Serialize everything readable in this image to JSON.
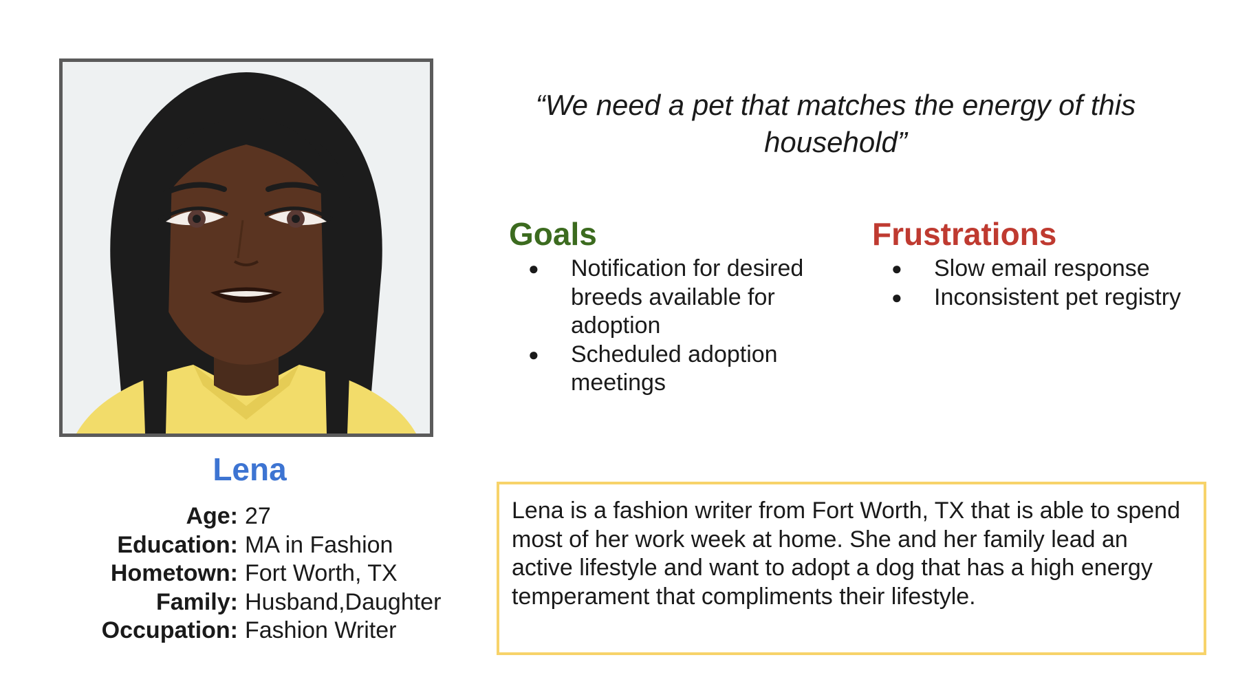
{
  "quote": "“We need a pet that matches the energy of this household”",
  "persona": {
    "name": "Lena",
    "details": [
      {
        "label": "Age:",
        "value": "27"
      },
      {
        "label": "Education:",
        "value": "MA in Fashion"
      },
      {
        "label": "Hometown:",
        "value": "Fort Worth, TX"
      },
      {
        "label": "Family:",
        "value": "Husband,Daughter"
      },
      {
        "label": "Occupation:",
        "value": "Fashion Writer"
      }
    ]
  },
  "goals": {
    "title": "Goals",
    "items": [
      "Notification for desired breeds available for adoption",
      "Scheduled adoption meetings"
    ]
  },
  "frustrations": {
    "title": "Frustrations",
    "items": [
      "Slow email response",
      "Inconsistent pet registry"
    ]
  },
  "bullet": "●",
  "bio": "Lena is a fashion writer from Fort Worth, TX that is able to spend most of her work week at home. She and her family lead an active lifestyle and want to adopt a dog that has a high energy temperament that compliments their lifestyle.",
  "colors": {
    "name": "#3d74d2",
    "goals": "#3c6b1f",
    "frustrations": "#bf3a30",
    "bio_border": "#f7d36a",
    "avatar_border": "#5b5b5b"
  },
  "avatar_icon": "person-avatar-illustration"
}
